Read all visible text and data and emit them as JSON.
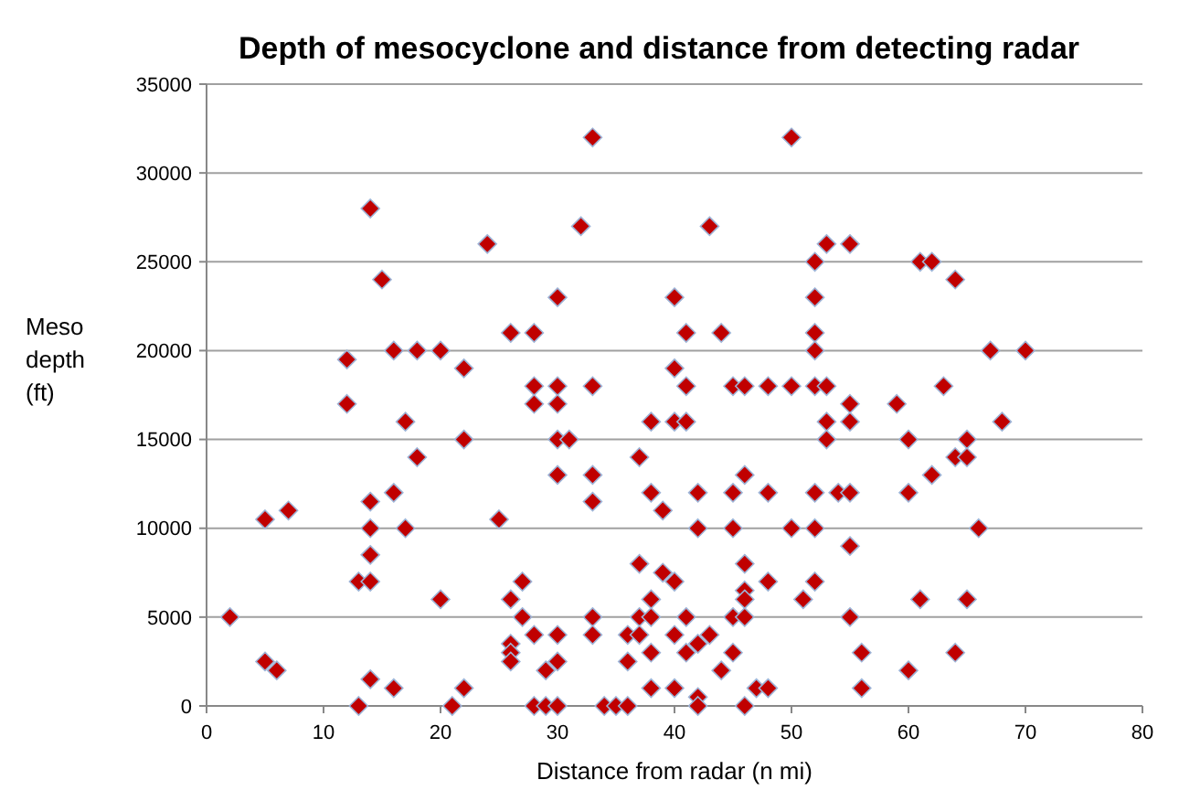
{
  "chart_data": {
    "type": "scatter",
    "title": "Depth of mesocyclone and distance from detecting radar",
    "xlabel": "Distance from radar (n mi)",
    "ylabel": "Meso depth (ft)",
    "xlim": [
      0,
      80
    ],
    "xticks": [
      0,
      10,
      20,
      30,
      40,
      50,
      60,
      70,
      80
    ],
    "ylim": [
      0,
      35000
    ],
    "yticks": [
      0,
      5000,
      10000,
      15000,
      20000,
      25000,
      30000,
      35000
    ],
    "grid": "y",
    "marker": "diamond",
    "series": [
      {
        "color": "#c00000",
        "x": [
          2,
          5,
          5,
          6,
          7,
          12,
          12,
          13,
          13,
          14,
          14,
          14,
          14,
          14,
          14,
          15,
          16,
          16,
          16,
          17,
          17,
          18,
          18,
          20,
          20,
          21,
          22,
          22,
          22,
          24,
          25,
          26,
          26,
          26,
          26,
          26,
          27,
          27,
          28,
          28,
          28,
          28,
          28,
          29,
          29,
          30,
          30,
          30,
          30,
          30,
          30,
          30,
          30,
          31,
          32,
          33,
          33,
          33,
          33,
          33,
          33,
          34,
          35,
          36,
          36,
          36,
          37,
          37,
          37,
          37,
          38,
          38,
          38,
          38,
          38,
          38,
          39,
          39,
          40,
          40,
          40,
          40,
          40,
          40,
          41,
          41,
          41,
          41,
          41,
          42,
          42,
          42,
          42,
          42,
          43,
          43,
          44,
          44,
          45,
          45,
          45,
          45,
          45,
          46,
          46,
          46,
          46,
          46,
          46,
          46,
          47,
          48,
          48,
          48,
          48,
          50,
          50,
          50,
          51,
          52,
          52,
          52,
          52,
          52,
          52,
          52,
          52,
          53,
          53,
          53,
          53,
          54,
          55,
          55,
          55,
          55,
          55,
          55,
          56,
          56,
          59,
          60,
          60,
          60,
          61,
          61,
          62,
          62,
          63,
          64,
          64,
          64,
          65,
          65,
          65,
          66,
          67,
          68,
          70
        ],
        "values": [
          5000,
          2500,
          10500,
          2000,
          11000,
          19500,
          17000,
          0,
          7000,
          7000,
          28000,
          11500,
          10000,
          8500,
          1500,
          24000,
          20000,
          12000,
          1000,
          16000,
          10000,
          20000,
          14000,
          20000,
          6000,
          0,
          19000,
          15000,
          1000,
          26000,
          10500,
          21000,
          6000,
          3500,
          3000,
          2500,
          7000,
          5000,
          21000,
          18000,
          17000,
          4000,
          0,
          0,
          2000,
          23000,
          18000,
          17000,
          15000,
          13000,
          4000,
          2500,
          0,
          15000,
          27000,
          32000,
          18000,
          13000,
          11500,
          5000,
          4000,
          0,
          0,
          0,
          4000,
          2500,
          14000,
          8000,
          5000,
          4000,
          16000,
          12000,
          6000,
          5000,
          3000,
          1000,
          11000,
          7500,
          23000,
          19000,
          16000,
          7000,
          4000,
          1000,
          21000,
          18000,
          16000,
          5000,
          3000,
          12000,
          10000,
          3500,
          500,
          0,
          27000,
          4000,
          21000,
          2000,
          10000,
          18000,
          12000,
          5000,
          3000,
          18000,
          13000,
          8000,
          6500,
          6000,
          5000,
          0,
          1000,
          1000,
          18000,
          12000,
          7000,
          32000,
          18000,
          10000,
          6000,
          25000,
          23000,
          21000,
          20000,
          18000,
          12000,
          10000,
          7000,
          26000,
          18000,
          15000,
          16000,
          12000,
          26000,
          17000,
          16000,
          12000,
          9000,
          5000,
          3000,
          1000,
          17000,
          15000,
          12000,
          2000,
          25000,
          6000,
          25000,
          13000,
          18000,
          24000,
          14000,
          3000,
          15000,
          14000,
          6000,
          10000,
          20000,
          16000,
          20000
        ]
      }
    ]
  }
}
